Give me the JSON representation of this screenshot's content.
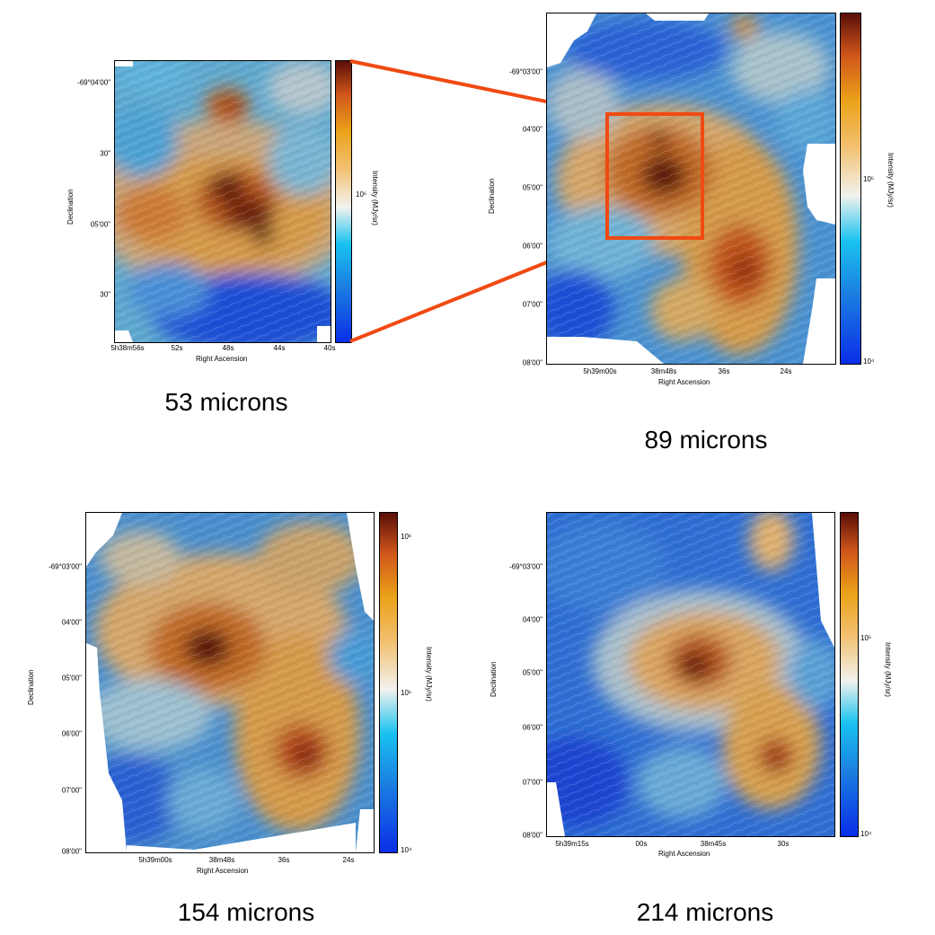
{
  "colorbar_label": "Intensity (MJy/sr)",
  "xlabel": "Right Ascension",
  "ylabel": "Declination",
  "accent_color": "#f04a12",
  "panels": [
    {
      "caption": "53 microns",
      "xticks": [
        "5h38m56s",
        "52s",
        "48s",
        "44s",
        "40s"
      ],
      "yticks": [
        "-69°04'00\"",
        "30\"",
        "05'00\"",
        "30\""
      ],
      "cbar_ticks": [
        "10⁶"
      ]
    },
    {
      "caption": "89 microns",
      "xticks": [
        "5h39m00s",
        "38m48s",
        "36s",
        "24s"
      ],
      "yticks": [
        "-69°03'00\"",
        "04'00\"",
        "05'00\"",
        "06'00\"",
        "07'00\"",
        "08'00\""
      ],
      "cbar_ticks": [
        "10⁵",
        "10⁴"
      ]
    },
    {
      "caption": "154 microns",
      "xticks": [
        "5h39m00s",
        "38m48s",
        "36s",
        "24s"
      ],
      "yticks": [
        "-69°03'00\"",
        "04'00\"",
        "05'00\"",
        "06'00\"",
        "07'00\"",
        "08'00\""
      ],
      "cbar_ticks": [
        "10⁶",
        "10⁵",
        "10⁴"
      ]
    },
    {
      "caption": "214 microns",
      "xticks": [
        "5h39m15s",
        "00s",
        "38m45s",
        "30s"
      ],
      "yticks": [
        "-69°03'00\"",
        "04'00\"",
        "05'00\"",
        "06'00\"",
        "07'00\"",
        "08'00\""
      ],
      "cbar_ticks": [
        "10⁵",
        "10⁴"
      ]
    }
  ]
}
